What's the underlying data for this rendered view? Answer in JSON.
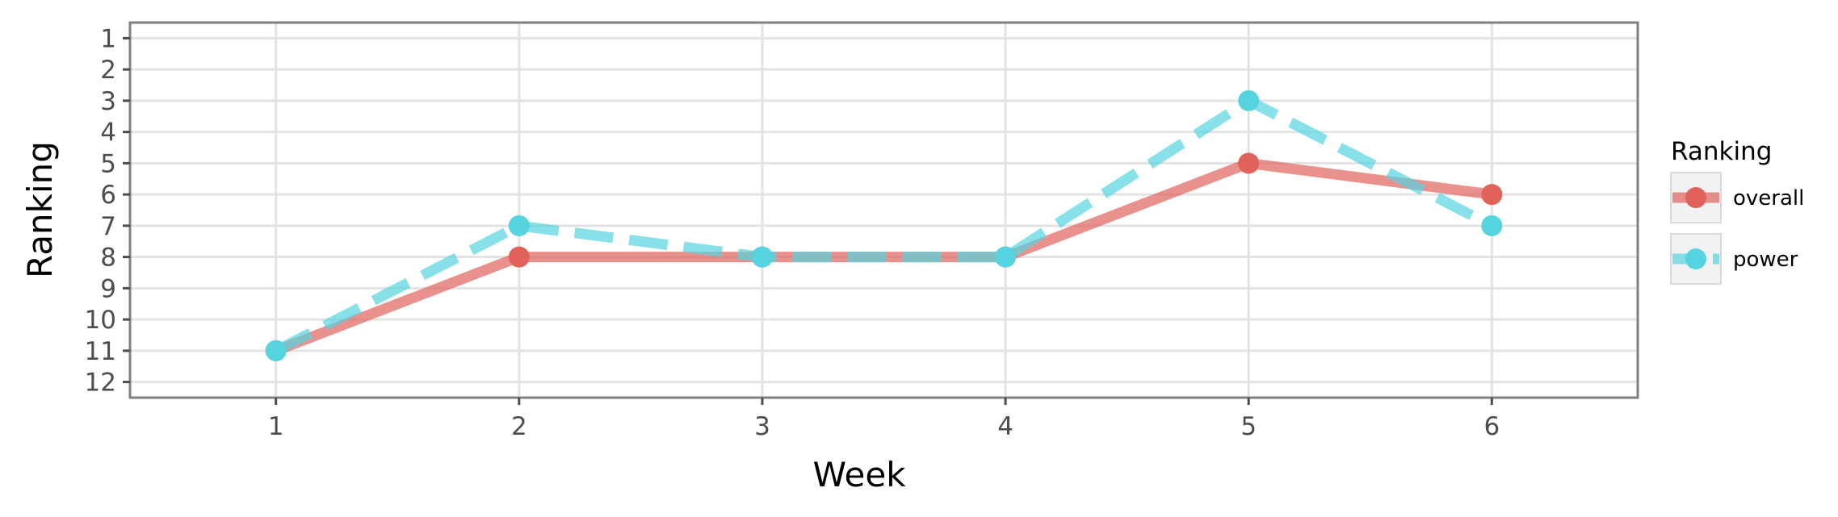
{
  "chart_data": {
    "type": "line",
    "xlabel": "Week",
    "ylabel": "Ranking",
    "x": [
      1,
      2,
      3,
      4,
      5,
      6
    ],
    "x_ticks": [
      "1",
      "2",
      "3",
      "4",
      "5",
      "6"
    ],
    "xlim": [
      0.4,
      6.6
    ],
    "y_ticks": [
      "1",
      "2",
      "3",
      "4",
      "5",
      "6",
      "7",
      "8",
      "9",
      "10",
      "11",
      "12"
    ],
    "ylim": [
      12.5,
      0.5
    ],
    "y_reversed": true,
    "grid": true,
    "legend": {
      "title": "Ranking",
      "placement": "right"
    },
    "series": [
      {
        "name": "overall",
        "values": [
          11,
          8,
          8,
          8,
          5,
          6
        ],
        "color": "#e0625b",
        "line_style": "solid"
      },
      {
        "name": "power",
        "values": [
          11,
          7,
          8,
          8,
          3,
          7
        ],
        "color": "#55d4df",
        "line_style": "dashed"
      }
    ]
  }
}
